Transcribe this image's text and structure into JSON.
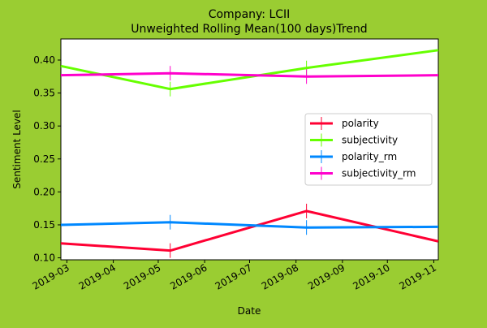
{
  "chart_data": {
    "type": "line",
    "title_line1": "Company: LCII",
    "title_line2": "Unweighted Rolling Mean(100 days)Trend",
    "xlabel": "Date",
    "ylabel": "Sentiment Level",
    "x_range": [
      "2019-02-25",
      "2019-11-04"
    ],
    "ylim": [
      0.097,
      0.432
    ],
    "x_tick_labels": [
      {
        "date": "2019-03-01",
        "label": "2019-03"
      },
      {
        "date": "2019-04-01",
        "label": "2019-04"
      },
      {
        "date": "2019-05-01",
        "label": "2019-05"
      },
      {
        "date": "2019-06-01",
        "label": "2019-06"
      },
      {
        "date": "2019-07-01",
        "label": "2019-07"
      },
      {
        "date": "2019-08-01",
        "label": "2019-08"
      },
      {
        "date": "2019-09-01",
        "label": "2019-09"
      },
      {
        "date": "2019-10-01",
        "label": "2019-10"
      },
      {
        "date": "2019-11-01",
        "label": "2019-11"
      }
    ],
    "y_ticks": [
      {
        "value": 0.1,
        "label": "0.10"
      },
      {
        "value": 0.15,
        "label": "0.15"
      },
      {
        "value": 0.2,
        "label": "0.20"
      },
      {
        "value": 0.25,
        "label": "0.25"
      },
      {
        "value": 0.3,
        "label": "0.30"
      },
      {
        "value": 0.35,
        "label": "0.35"
      },
      {
        "value": 0.4,
        "label": "0.40"
      }
    ],
    "legend_position": "center-right",
    "grid": false,
    "series": [
      {
        "name": "polarity",
        "color": "#ff0033",
        "points": [
          [
            "2019-02-25",
            0.122
          ],
          [
            "2019-05-09",
            0.111
          ],
          [
            "2019-08-08",
            0.171
          ],
          [
            "2019-11-04",
            0.125
          ]
        ],
        "markers": [
          [
            "2019-05-09",
            0.111
          ],
          [
            "2019-08-08",
            0.171
          ]
        ]
      },
      {
        "name": "subjectivity",
        "color": "#66ff00",
        "points": [
          [
            "2019-02-25",
            0.391
          ],
          [
            "2019-05-09",
            0.356
          ],
          [
            "2019-08-08",
            0.388
          ],
          [
            "2019-11-04",
            0.415
          ]
        ],
        "markers": [
          [
            "2019-05-09",
            0.356
          ],
          [
            "2019-08-08",
            0.388
          ]
        ]
      },
      {
        "name": "polarity_rm",
        "color": "#0088ff",
        "points": [
          [
            "2019-02-25",
            0.15
          ],
          [
            "2019-05-09",
            0.154
          ],
          [
            "2019-08-08",
            0.146
          ],
          [
            "2019-11-04",
            0.147
          ]
        ],
        "markers": [
          [
            "2019-05-09",
            0.154
          ],
          [
            "2019-08-08",
            0.146
          ]
        ]
      },
      {
        "name": "subjectivity_rm",
        "color": "#ff00cc",
        "points": [
          [
            "2019-02-25",
            0.377
          ],
          [
            "2019-05-09",
            0.38
          ],
          [
            "2019-08-08",
            0.375
          ],
          [
            "2019-11-04",
            0.377
          ]
        ],
        "markers": [
          [
            "2019-05-09",
            0.38
          ],
          [
            "2019-08-08",
            0.375
          ]
        ]
      }
    ]
  }
}
